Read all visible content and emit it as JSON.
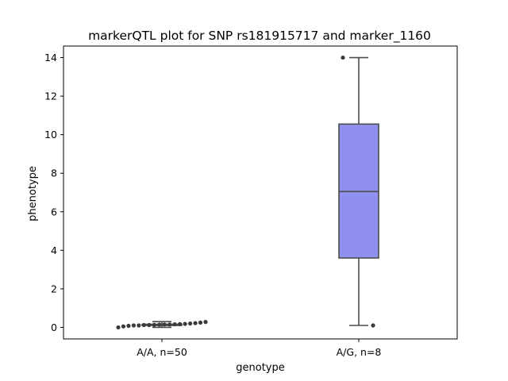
{
  "chart_data": {
    "type": "box",
    "title": "markerQTL plot for SNP rs181915717 and marker_1160",
    "xlabel": "genotype",
    "ylabel": "phenotype",
    "ylim": [
      -0.6,
      14.6
    ],
    "yticks": [
      0,
      2,
      4,
      6,
      8,
      10,
      12,
      14
    ],
    "categories": [
      "A/A, n=50",
      "A/G, n=8"
    ],
    "box_color": "#9090f0",
    "line_color": "#4d4d4d",
    "groups": [
      {
        "category": "A/A, n=50",
        "min": 0.0,
        "q1": 0.1,
        "median": 0.13,
        "q3": 0.16,
        "max": 0.3,
        "outliers": [
          0.0,
          0.05,
          0.08,
          0.1,
          0.1,
          0.12,
          0.12,
          0.13,
          0.14,
          0.15,
          0.15,
          0.16,
          0.17,
          0.18,
          0.2,
          0.22,
          0.25,
          0.28
        ]
      },
      {
        "category": "A/G, n=8",
        "min": 0.1,
        "q1": 3.6,
        "median": 7.05,
        "q3": 10.55,
        "max": 14.0,
        "outliers": [
          14.0,
          0.1
        ]
      }
    ]
  }
}
